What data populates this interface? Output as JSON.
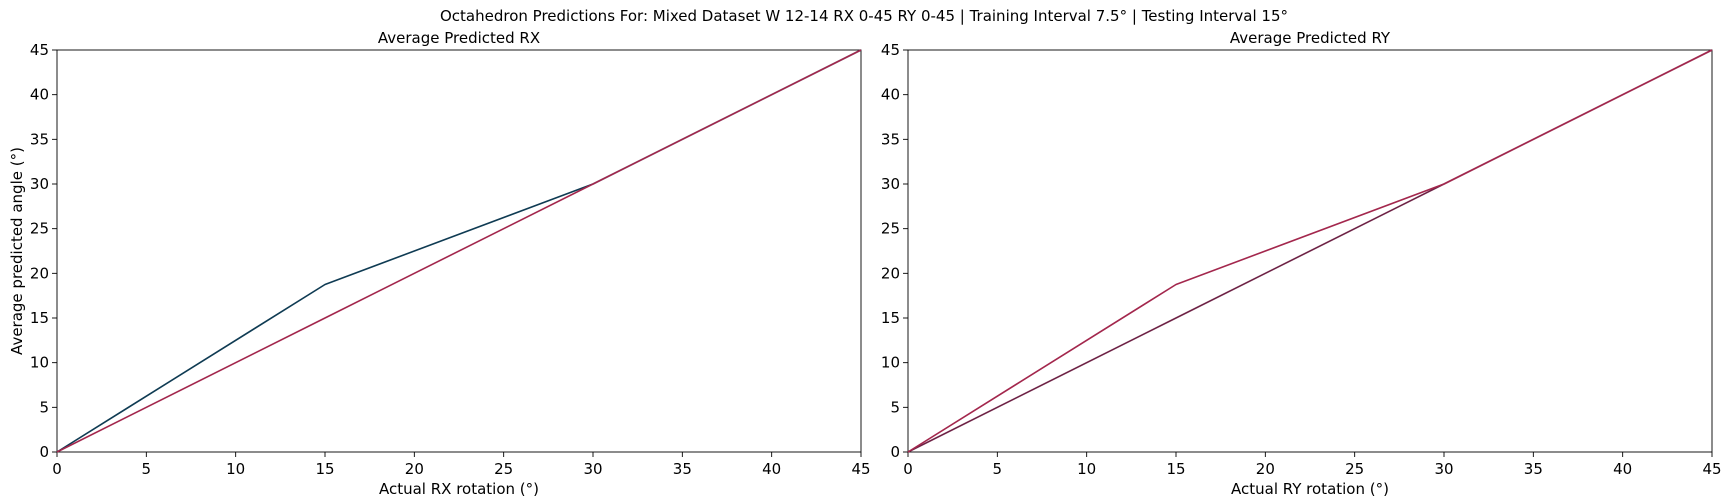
{
  "figure": {
    "suptitle": "Octahedron Predictions For: Mixed Dataset W 12-14 RX 0-45 RY 0-45 | Training Interval 7.5° | Testing Interval 15°"
  },
  "chart_data": [
    {
      "type": "line",
      "title": "Average Predicted RX",
      "xlabel": "Actual RX rotation (°)",
      "ylabel": "Average predicted angle (°)",
      "xlim": [
        0,
        45
      ],
      "ylim": [
        0,
        45
      ],
      "xticks": [
        0,
        5,
        10,
        15,
        20,
        25,
        30,
        35,
        40,
        45
      ],
      "yticks": [
        0,
        5,
        10,
        15,
        20,
        25,
        30,
        35,
        40,
        45
      ],
      "grid": false,
      "series": [
        {
          "x": [
            0,
            15,
            30,
            45
          ],
          "y": [
            0,
            18.75,
            30,
            45
          ],
          "color": "#0f3b53"
        },
        {
          "x": [
            0,
            15,
            30,
            45
          ],
          "y": [
            0,
            15,
            30,
            45
          ],
          "color": "#a3274d"
        }
      ]
    },
    {
      "type": "line",
      "title": "Average Predicted RY",
      "xlabel": "Actual RY rotation (°)",
      "ylabel": "",
      "xlim": [
        0,
        45
      ],
      "ylim": [
        0,
        45
      ],
      "xticks": [
        0,
        5,
        10,
        15,
        20,
        25,
        30,
        35,
        40,
        45
      ],
      "yticks": [
        0,
        5,
        10,
        15,
        20,
        25,
        30,
        35,
        40,
        45
      ],
      "grid": false,
      "series": [
        {
          "x": [
            0,
            15,
            30,
            45
          ],
          "y": [
            0,
            15,
            30,
            45
          ],
          "color": "#6e2346"
        },
        {
          "x": [
            0,
            15,
            30,
            45
          ],
          "y": [
            0,
            18.75,
            30,
            45
          ],
          "color": "#a3274d"
        }
      ]
    }
  ]
}
